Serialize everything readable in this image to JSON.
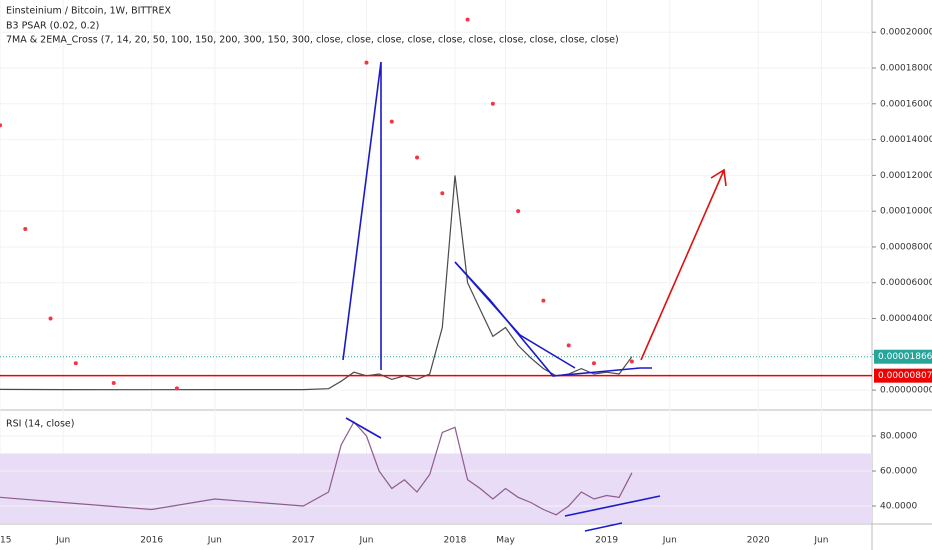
{
  "chart_data": [
    {
      "type": "line",
      "title": "Einsteinium / Bitcoin, 1W, BITTREX",
      "indicators": [
        "B3 PSAR (0.02, 0.2)",
        "7MA & 2EMA_Cross (7, 14, 20, 50, 100, 150, 200, 300, 150, 300, close, close, close, close, close, close, close, close, close, close)"
      ],
      "x": [
        "2015-01",
        "2015-06",
        "2016-01",
        "2016-06",
        "2017-01",
        "2017-03",
        "2017-04",
        "2017-05",
        "2017-06",
        "2017-07",
        "2017-08",
        "2017-09",
        "2017-10",
        "2017-11",
        "2017-12",
        "2018-01",
        "2018-02",
        "2018-03",
        "2018-04",
        "2018-05",
        "2018-06",
        "2018-07",
        "2018-08",
        "2018-09",
        "2018-10",
        "2018-11",
        "2018-12",
        "2019-01",
        "2019-02",
        "2019-03"
      ],
      "values": [
        4e-07,
        3e-07,
        2e-07,
        3e-07,
        3e-07,
        8e-07,
        5e-06,
        1e-05,
        8e-06,
        9e-06,
        6e-06,
        8e-06,
        6e-06,
        9e-06,
        3.5e-05,
        0.00012,
        6e-05,
        4.5e-05,
        3e-05,
        3.5e-05,
        2.5e-05,
        1.8e-05,
        1.2e-05,
        8e-06,
        9e-06,
        1.2e-05,
        9e-06,
        1e-05,
        9e-06,
        1.866e-05
      ],
      "color": "#4a4a4a",
      "psar": {
        "x": [
          "2015-01",
          "2015-03",
          "2015-05",
          "2015-07",
          "2015-10",
          "2016-03",
          "2017-06",
          "2017-08",
          "2017-10",
          "2017-12",
          "2018-02",
          "2018-04",
          "2018-06",
          "2018-08",
          "2018-10",
          "2018-12",
          "2019-03"
        ],
        "values": [
          0.000148,
          9e-05,
          4e-05,
          1.5e-05,
          4e-06,
          1e-06,
          0.000183,
          0.00015,
          0.00013,
          0.00011,
          0.000207,
          0.00016,
          0.0001,
          5e-05,
          2.5e-05,
          1.5e-05,
          1.6e-05
        ],
        "color": "#f23645"
      },
      "last_price": 1.866e-05,
      "last_price_color": "#26a69a",
      "support_level": 8.07e-06,
      "support_color": "#f20000",
      "xlim": [
        "2015-01",
        "2020-10"
      ],
      "xticks": [
        {
          "value": "2015-01",
          "label": "2015"
        },
        {
          "value": "2015-06",
          "label": "Jun"
        },
        {
          "value": "2016-01",
          "label": "2016"
        },
        {
          "value": "2016-06",
          "label": "Jun"
        },
        {
          "value": "2017-01",
          "label": "2017"
        },
        {
          "value": "2017-06",
          "label": "Jun"
        },
        {
          "value": "2018-01",
          "label": "2018"
        },
        {
          "value": "2018-05",
          "label": "May"
        },
        {
          "value": "2019-01",
          "label": "2019"
        },
        {
          "value": "2019-06",
          "label": "Jun"
        },
        {
          "value": "2020-01",
          "label": "2020"
        },
        {
          "value": "2020-06",
          "label": "Jun"
        }
      ],
      "ylim": [
        -1e-05,
        0.000218
      ],
      "yticks": [
        {
          "value": 0,
          "label": "0.00000000"
        },
        {
          "value": 2e-05,
          "label": "0.00002000"
        },
        {
          "value": 4e-05,
          "label": "0.00004000"
        },
        {
          "value": 6e-05,
          "label": "0.00006000"
        },
        {
          "value": 8e-05,
          "label": "0.00008000"
        },
        {
          "value": 0.0001,
          "label": "0.00010000"
        },
        {
          "value": 0.00012,
          "label": "0.00012000"
        },
        {
          "value": 0.00014,
          "label": "0.00014000"
        },
        {
          "value": 0.00016,
          "label": "0.00016000"
        },
        {
          "value": 0.00018,
          "label": "0.00018000"
        },
        {
          "value": 0.0002,
          "label": "0.00020000"
        }
      ],
      "grid": true
    },
    {
      "type": "line",
      "title": "RSI (14, close)",
      "x": [
        "2015-01",
        "2015-06",
        "2016-01",
        "2016-06",
        "2017-01",
        "2017-03",
        "2017-04",
        "2017-05",
        "2017-06",
        "2017-07",
        "2017-08",
        "2017-09",
        "2017-10",
        "2017-11",
        "2017-12",
        "2018-01",
        "2018-02",
        "2018-03",
        "2018-04",
        "2018-05",
        "2018-06",
        "2018-07",
        "2018-08",
        "2018-09",
        "2018-10",
        "2018-11",
        "2018-12",
        "2019-01",
        "2019-02",
        "2019-03"
      ],
      "values": [
        45,
        42,
        38,
        44,
        40,
        48,
        75,
        88,
        80,
        60,
        50,
        55,
        48,
        58,
        82,
        85,
        55,
        50,
        44,
        50,
        45,
        42,
        38,
        35,
        40,
        48,
        44,
        46,
        45,
        59
      ],
      "color": "#8e5c8e",
      "band": [
        30,
        70
      ],
      "band_color": "#e9dcf7",
      "xlim": [
        "2015-01",
        "2020-10"
      ],
      "ylim": [
        30.3,
        94.3
      ],
      "yticks": [
        {
          "value": 40,
          "label": "40.0000"
        },
        {
          "value": 60,
          "label": "60.0000"
        },
        {
          "value": 80,
          "label": "80.0000"
        }
      ],
      "grid": true
    }
  ]
}
